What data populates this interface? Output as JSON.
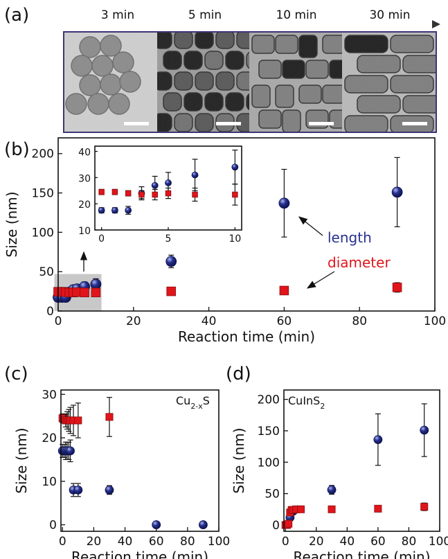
{
  "panel_a": {
    "label": "(a)",
    "times": [
      "3 min",
      "5 min",
      "10 min",
      "30 min"
    ]
  },
  "colors": {
    "length": "#27318f",
    "diameter": "#e0151b",
    "frame_a": "#3b3576",
    "inset_shade": "#c8c8c8"
  },
  "chart_data": [
    {
      "id": "b",
      "panel_label": "(b)",
      "type": "scatter",
      "xlabel": "Reaction time (min)",
      "ylabel": "Size (nm)",
      "xlim": [
        0,
        100
      ],
      "ylim": [
        0,
        220
      ],
      "xticks": [
        0,
        20,
        40,
        60,
        80,
        100
      ],
      "yticks": [
        0,
        50,
        100,
        150,
        200
      ],
      "annotations": {
        "length": "length",
        "diameter": "diameter"
      },
      "series": [
        {
          "name": "length",
          "marker": "circle",
          "points": [
            {
              "x": 0,
              "y": 17.5,
              "err": 1.5
            },
            {
              "x": 1,
              "y": 17.5,
              "err": 1.5
            },
            {
              "x": 2,
              "y": 17.5,
              "err": 2
            },
            {
              "x": 3,
              "y": 24,
              "err": 2.5
            },
            {
              "x": 4,
              "y": 27,
              "err": 3.5
            },
            {
              "x": 5,
              "y": 28,
              "err": 4
            },
            {
              "x": 7,
              "y": 31,
              "err": 6
            },
            {
              "x": 10,
              "y": 34,
              "err": 7
            },
            {
              "x": 30,
              "y": 63,
              "err": 8
            },
            {
              "x": 60,
              "y": 137,
              "err": 43
            },
            {
              "x": 90,
              "y": 151,
              "err": 44
            }
          ]
        },
        {
          "name": "diameter",
          "marker": "square",
          "points": [
            {
              "x": 0,
              "y": 24.5,
              "err": 1
            },
            {
              "x": 1,
              "y": 24.5,
              "err": 1
            },
            {
              "x": 2,
              "y": 24,
              "err": 1
            },
            {
              "x": 3,
              "y": 23.5,
              "err": 1.5
            },
            {
              "x": 4,
              "y": 23.5,
              "err": 2
            },
            {
              "x": 5,
              "y": 24,
              "err": 2
            },
            {
              "x": 7,
              "y": 23.5,
              "err": 2.5
            },
            {
              "x": 10,
              "y": 23.5,
              "err": 3
            },
            {
              "x": 30,
              "y": 25,
              "err": 4
            },
            {
              "x": 60,
              "y": 26,
              "err": 4
            },
            {
              "x": 90,
              "y": 30,
              "err": 6
            }
          ]
        }
      ]
    },
    {
      "id": "b-inset",
      "type": "scatter",
      "xlim": [
        -0.5,
        10.5
      ],
      "ylim": [
        10,
        42
      ],
      "xticks": [
        0,
        5,
        10
      ],
      "yticks": [
        10,
        20,
        30,
        40
      ],
      "series": [
        {
          "name": "length",
          "marker": "circle",
          "points": [
            {
              "x": 0,
              "y": 17.5,
              "err": 1
            },
            {
              "x": 1,
              "y": 17.5,
              "err": 1
            },
            {
              "x": 2,
              "y": 17.5,
              "err": 1.5
            },
            {
              "x": 3,
              "y": 24,
              "err": 2.5
            },
            {
              "x": 4,
              "y": 27,
              "err": 3.5
            },
            {
              "x": 5,
              "y": 28,
              "err": 4
            },
            {
              "x": 7,
              "y": 31,
              "err": 6
            },
            {
              "x": 10,
              "y": 34,
              "err": 6.5
            }
          ]
        },
        {
          "name": "diameter",
          "marker": "square",
          "points": [
            {
              "x": 0,
              "y": 24.5,
              "err": 1
            },
            {
              "x": 1,
              "y": 24.5,
              "err": 1
            },
            {
              "x": 2,
              "y": 24,
              "err": 1
            },
            {
              "x": 3,
              "y": 23.5,
              "err": 1.5
            },
            {
              "x": 4,
              "y": 23.5,
              "err": 2
            },
            {
              "x": 5,
              "y": 24,
              "err": 2
            },
            {
              "x": 7,
              "y": 23.5,
              "err": 2.5
            },
            {
              "x": 10,
              "y": 23.5,
              "err": 4
            }
          ]
        }
      ]
    },
    {
      "id": "c",
      "panel_label": "(c)",
      "type": "scatter",
      "corner_label": {
        "base": "Cu",
        "sub": "2-x",
        "tail": "S"
      },
      "xlabel": "Reaction time (min)",
      "ylabel": "Size (nm)",
      "xlim": [
        -1,
        100
      ],
      "ylim": [
        -1.5,
        31
      ],
      "xticks": [
        0,
        20,
        40,
        60,
        80,
        100
      ],
      "yticks": [
        0,
        10,
        20,
        30
      ],
      "series": [
        {
          "name": "length",
          "marker": "circle",
          "points": [
            {
              "x": 0,
              "y": 17,
              "err": 1.5
            },
            {
              "x": 1,
              "y": 17,
              "err": 1.5
            },
            {
              "x": 2,
              "y": 17,
              "err": 2
            },
            {
              "x": 3,
              "y": 17,
              "err": 2
            },
            {
              "x": 4,
              "y": 17,
              "err": 2
            },
            {
              "x": 5,
              "y": 17,
              "err": 2.5
            },
            {
              "x": 7,
              "y": 8,
              "err": 1.5
            },
            {
              "x": 10,
              "y": 8,
              "err": 1.5
            },
            {
              "x": 30,
              "y": 8,
              "err": 1
            },
            {
              "x": 60,
              "y": 0,
              "err": 0.5
            },
            {
              "x": 90,
              "y": 0,
              "err": 0.5
            }
          ]
        },
        {
          "name": "diameter",
          "marker": "square",
          "points": [
            {
              "x": 0,
              "y": 24.5,
              "err": 1
            },
            {
              "x": 1,
              "y": 24.5,
              "err": 1
            },
            {
              "x": 2,
              "y": 24,
              "err": 1.5
            },
            {
              "x": 3,
              "y": 24,
              "err": 2
            },
            {
              "x": 4,
              "y": 24,
              "err": 2.5
            },
            {
              "x": 5,
              "y": 24,
              "err": 3
            },
            {
              "x": 7,
              "y": 24,
              "err": 3.5
            },
            {
              "x": 10,
              "y": 24,
              "err": 4
            },
            {
              "x": 30,
              "y": 24.8,
              "err": 4.5
            }
          ]
        }
      ]
    },
    {
      "id": "d",
      "panel_label": "(d)",
      "type": "scatter",
      "corner_label": {
        "base": "CuInS",
        "sub": "2",
        "tail": ""
      },
      "xlabel": "Reaction time (min)",
      "ylabel": "Size (nm)",
      "xlim": [
        -1,
        100
      ],
      "ylim": [
        -10,
        215
      ],
      "xticks": [
        0,
        20,
        40,
        60,
        80,
        100
      ],
      "yticks": [
        0,
        50,
        100,
        150,
        200
      ],
      "series": [
        {
          "name": "length",
          "marker": "circle",
          "points": [
            {
              "x": 3,
              "y": 12,
              "err": 2
            },
            {
              "x": 5,
              "y": 22,
              "err": 3
            },
            {
              "x": 30,
              "y": 56,
              "err": 7
            },
            {
              "x": 60,
              "y": 136,
              "err": 41
            },
            {
              "x": 90,
              "y": 151,
              "err": 42
            }
          ]
        },
        {
          "name": "diameter",
          "marker": "square",
          "points": [
            {
              "x": 0,
              "y": 0,
              "err": 1
            },
            {
              "x": 1,
              "y": 0,
              "err": 1
            },
            {
              "x": 2,
              "y": 2,
              "err": 1
            },
            {
              "x": 3,
              "y": 20,
              "err": 3
            },
            {
              "x": 4,
              "y": 24,
              "err": 3
            },
            {
              "x": 5,
              "y": 24,
              "err": 3
            },
            {
              "x": 7,
              "y": 25,
              "err": 3
            },
            {
              "x": 10,
              "y": 25,
              "err": 3
            },
            {
              "x": 30,
              "y": 25,
              "err": 4
            },
            {
              "x": 60,
              "y": 26,
              "err": 4
            },
            {
              "x": 90,
              "y": 29,
              "err": 6
            }
          ]
        }
      ]
    }
  ]
}
